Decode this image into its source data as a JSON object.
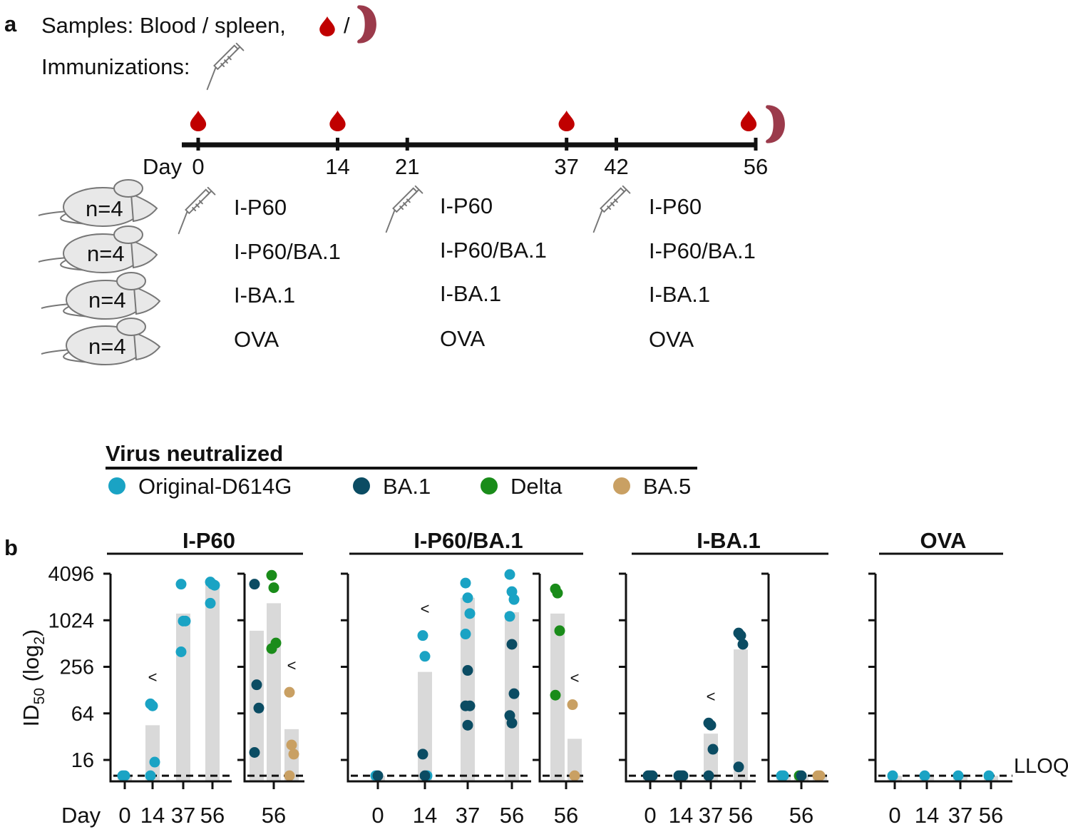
{
  "panel_a": {
    "label": "a",
    "samples_label": "Samples: Blood / spleen,",
    "samples_sep": "/",
    "immunizations_label": "Immunizations:",
    "day_prefix": "Day",
    "days": [
      0,
      14,
      21,
      37,
      42,
      56
    ],
    "blood_days": [
      0,
      14,
      37,
      56
    ],
    "spleen_days": [
      56
    ],
    "immunization_days": [
      0,
      21,
      42
    ],
    "group_n": [
      "n=4",
      "n=4",
      "n=4",
      "n=4"
    ],
    "groups": [
      "I-P60",
      "I-P60/BA.1",
      "I-BA.1",
      "OVA"
    ]
  },
  "legend": {
    "title": "Virus neutralized",
    "items": [
      {
        "label": "Original-D614G",
        "color": "#1aa3c4"
      },
      {
        "label": "BA.1",
        "color": "#0b4c63"
      },
      {
        "label": "Delta",
        "color": "#1a8c1a"
      },
      {
        "label": "BA.5",
        "color": "#c9a063"
      }
    ]
  },
  "panel_b_label": "b",
  "chart_data": {
    "type": "scatter",
    "ylabel": "ID50 (log2)",
    "y_scale": "log2",
    "ylim": [
      8,
      4096
    ],
    "yticks": [
      16,
      64,
      256,
      1024,
      4096
    ],
    "ytick_labels": [
      "16",
      "64",
      "256",
      "1024",
      "4096"
    ],
    "xlabel": "Day",
    "lloq_label": "LLOQ",
    "lloq_value": 10,
    "nd_marker": "<",
    "groups": [
      {
        "name": "I-P60",
        "subplots": [
          {
            "categories": [
              {
                "label": "0",
                "bar": 10,
                "points": [
                  {
                    "v": 10,
                    "c": "Original-D614G"
                  },
                  {
                    "v": 10,
                    "c": "Original-D614G"
                  }
                ]
              },
              {
                "label": "14",
                "bar": 45,
                "nd": true,
                "points": [
                  {
                    "v": 85,
                    "c": "Original-D614G"
                  },
                  {
                    "v": 80,
                    "c": "Original-D614G"
                  },
                  {
                    "v": 15,
                    "c": "Original-D614G"
                  },
                  {
                    "v": 10,
                    "c": "Original-D614G"
                  }
                ]
              },
              {
                "label": "37",
                "bar": 1250,
                "points": [
                  {
                    "v": 3000,
                    "c": "Original-D614G"
                  },
                  {
                    "v": 1000,
                    "c": "Original-D614G"
                  },
                  {
                    "v": 1000,
                    "c": "Original-D614G"
                  },
                  {
                    "v": 400,
                    "c": "Original-D614G"
                  }
                ]
              },
              {
                "label": "56",
                "bar": 3200,
                "points": [
                  {
                    "v": 3200,
                    "c": "Original-D614G"
                  },
                  {
                    "v": 3000,
                    "c": "Original-D614G"
                  },
                  {
                    "v": 2900,
                    "c": "Original-D614G"
                  },
                  {
                    "v": 1700,
                    "c": "Original-D614G"
                  }
                ]
              }
            ]
          },
          {
            "categories": [
              {
                "label": "",
                "bar": 750,
                "points": [
                  {
                    "v": 3000,
                    "c": "BA.1"
                  },
                  {
                    "v": 150,
                    "c": "BA.1"
                  },
                  {
                    "v": 75,
                    "c": "BA.1"
                  },
                  {
                    "v": 20,
                    "c": "BA.1"
                  }
                ]
              },
              {
                "label": "56",
                "bar": 1700,
                "points": [
                  {
                    "v": 3900,
                    "c": "Delta"
                  },
                  {
                    "v": 2700,
                    "c": "Delta"
                  },
                  {
                    "v": 520,
                    "c": "Delta"
                  },
                  {
                    "v": 440,
                    "c": "Delta"
                  }
                ]
              },
              {
                "label": "",
                "bar": 40,
                "nd": true,
                "points": [
                  {
                    "v": 120,
                    "c": "BA.5"
                  },
                  {
                    "v": 25,
                    "c": "BA.5"
                  },
                  {
                    "v": 19,
                    "c": "BA.5"
                  },
                  {
                    "v": 10,
                    "c": "BA.5"
                  }
                ]
              }
            ]
          }
        ]
      },
      {
        "name": "I-P60/BA.1",
        "subplots": [
          {
            "categories": [
              {
                "label": "0",
                "bar": 10,
                "points": [
                  {
                    "v": 10,
                    "c": "Original-D614G"
                  },
                  {
                    "v": 10,
                    "c": "BA.1"
                  }
                ]
              },
              {
                "label": "14",
                "bar": 220,
                "nd": true,
                "points": [
                  {
                    "v": 650,
                    "c": "Original-D614G"
                  },
                  {
                    "v": 350,
                    "c": "Original-D614G"
                  },
                  {
                    "v": 10,
                    "c": "Original-D614G"
                  },
                  {
                    "v": 19,
                    "c": "BA.1"
                  },
                  {
                    "v": 10,
                    "c": "BA.1"
                  }
                ]
              },
              {
                "label": "37",
                "bar": 2000,
                "points": [
                  {
                    "v": 3100,
                    "c": "Original-D614G"
                  },
                  {
                    "v": 2000,
                    "c": "Original-D614G"
                  },
                  {
                    "v": 1250,
                    "c": "Original-D614G"
                  },
                  {
                    "v": 680,
                    "c": "Original-D614G"
                  },
                  {
                    "v": 230,
                    "c": "BA.1"
                  },
                  {
                    "v": 80,
                    "c": "BA.1"
                  },
                  {
                    "v": 80,
                    "c": "BA.1"
                  },
                  {
                    "v": 45,
                    "c": "BA.1"
                  }
                ]
              },
              {
                "label": "56",
                "bar": 1300,
                "points": [
                  {
                    "v": 4000,
                    "c": "Original-D614G"
                  },
                  {
                    "v": 2400,
                    "c": "Original-D614G"
                  },
                  {
                    "v": 1900,
                    "c": "Original-D614G"
                  },
                  {
                    "v": 1150,
                    "c": "Original-D614G"
                  },
                  {
                    "v": 500,
                    "c": "BA.1"
                  },
                  {
                    "v": 115,
                    "c": "BA.1"
                  },
                  {
                    "v": 60,
                    "c": "BA.1"
                  },
                  {
                    "v": 48,
                    "c": "BA.1"
                  }
                ]
              }
            ]
          },
          {
            "categories": [
              {
                "label": "56",
                "bar": 1250,
                "points": [
                  {
                    "v": 2600,
                    "c": "Delta"
                  },
                  {
                    "v": 2300,
                    "c": "Delta"
                  },
                  {
                    "v": 750,
                    "c": "Delta"
                  },
                  {
                    "v": 110,
                    "c": "Delta"
                  }
                ]
              },
              {
                "label": "",
                "bar": 30,
                "nd": true,
                "points": [
                  {
                    "v": 83,
                    "c": "BA.5"
                  },
                  {
                    "v": 10,
                    "c": "BA.5"
                  }
                ]
              }
            ]
          }
        ]
      },
      {
        "name": "I-BA.1",
        "subplots": [
          {
            "categories": [
              {
                "label": "0",
                "bar": 10,
                "points": [
                  {
                    "v": 10,
                    "c": "BA.1"
                  },
                  {
                    "v": 10,
                    "c": "BA.1"
                  },
                  {
                    "v": 10,
                    "c": "BA.1"
                  }
                ]
              },
              {
                "label": "14",
                "bar": 10,
                "points": [
                  {
                    "v": 10,
                    "c": "BA.1"
                  },
                  {
                    "v": 10,
                    "c": "BA.1"
                  },
                  {
                    "v": 10,
                    "c": "BA.1"
                  }
                ]
              },
              {
                "label": "37",
                "bar": 35,
                "nd": true,
                "points": [
                  {
                    "v": 48,
                    "c": "BA.1"
                  },
                  {
                    "v": 45,
                    "c": "BA.1"
                  },
                  {
                    "v": 22,
                    "c": "BA.1"
                  },
                  {
                    "v": 10,
                    "c": "BA.1"
                  }
                ]
              },
              {
                "label": "56",
                "bar": 430,
                "points": [
                  {
                    "v": 700,
                    "c": "BA.1"
                  },
                  {
                    "v": 650,
                    "c": "BA.1"
                  },
                  {
                    "v": 500,
                    "c": "BA.1"
                  },
                  {
                    "v": 13,
                    "c": "BA.1"
                  }
                ]
              }
            ]
          },
          {
            "categories": [
              {
                "label": "",
                "bar": 10,
                "points": [
                  {
                    "v": 10,
                    "c": "Original-D614G"
                  },
                  {
                    "v": 10,
                    "c": "Original-D614G"
                  }
                ]
              },
              {
                "label": "56",
                "bar": 10,
                "points": [
                  {
                    "v": 10,
                    "c": "Delta"
                  },
                  {
                    "v": 10,
                    "c": "BA.1"
                  }
                ]
              },
              {
                "label": "",
                "bar": 10,
                "points": [
                  {
                    "v": 10,
                    "c": "BA.5"
                  },
                  {
                    "v": 10,
                    "c": "BA.5"
                  }
                ]
              }
            ]
          }
        ]
      },
      {
        "name": "OVA",
        "subplots": [
          {
            "categories": [
              {
                "label": "0",
                "bar": 10,
                "points": [
                  {
                    "v": 10,
                    "c": "Original-D614G"
                  }
                ]
              },
              {
                "label": "14",
                "bar": 10,
                "points": [
                  {
                    "v": 10,
                    "c": "Original-D614G"
                  }
                ]
              },
              {
                "label": "37",
                "bar": 10,
                "points": [
                  {
                    "v": 10,
                    "c": "Original-D614G"
                  }
                ]
              },
              {
                "label": "56",
                "bar": 10,
                "points": [
                  {
                    "v": 10,
                    "c": "Original-D614G"
                  }
                ]
              }
            ]
          }
        ]
      }
    ]
  }
}
